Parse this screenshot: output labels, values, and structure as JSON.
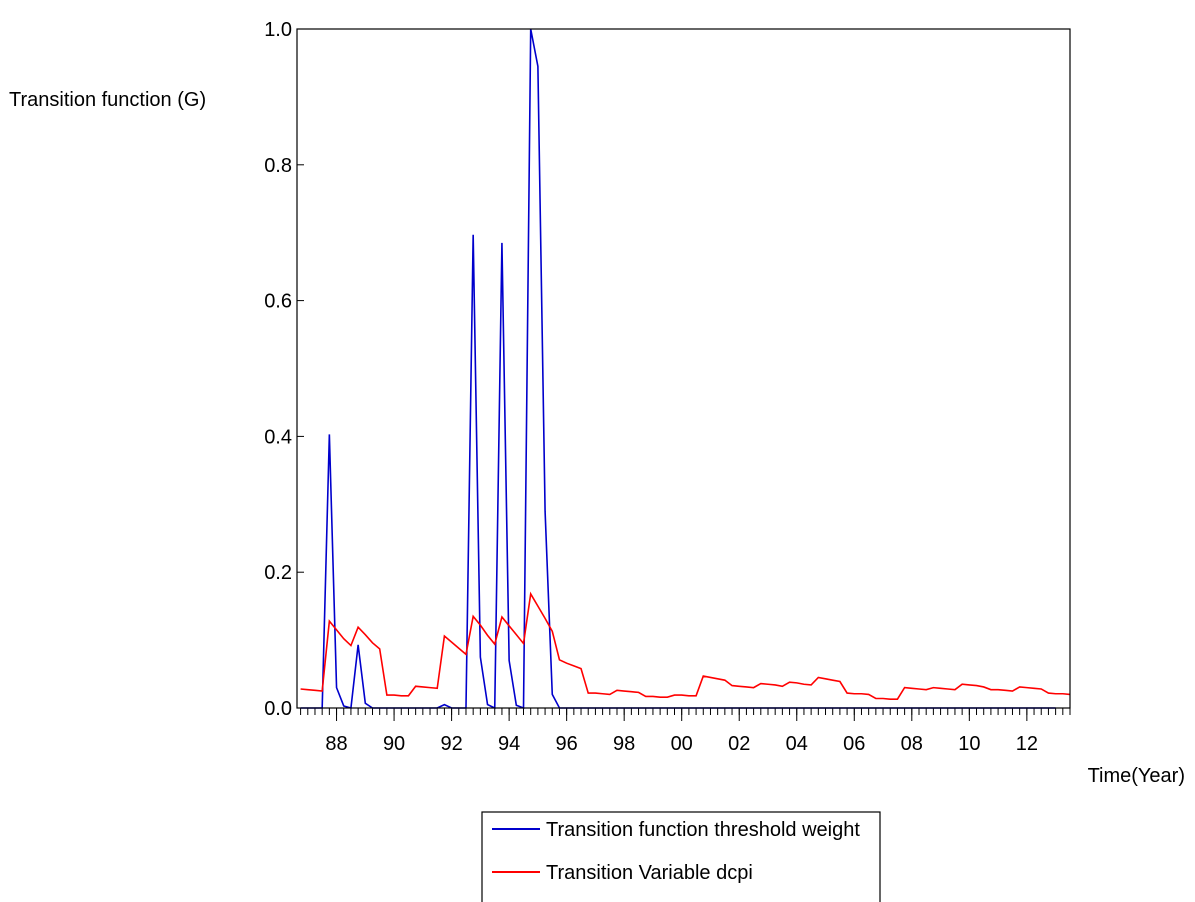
{
  "chart_data": {
    "type": "line",
    "ylabel": "Transition function (G)",
    "xlabel": "Time(Year)",
    "xlim": [
      1986.625,
      2013.5
    ],
    "ylim": [
      0.0,
      1.0
    ],
    "y_ticks": [
      "0.0",
      "0.2",
      "0.4",
      "0.6",
      "0.8",
      "1.0"
    ],
    "y_tick_values": [
      0.0,
      0.2,
      0.4,
      0.6,
      0.8,
      1.0
    ],
    "x_ticks": [
      "88",
      "90",
      "92",
      "94",
      "96",
      "98",
      "00",
      "02",
      "04",
      "06",
      "08",
      "10",
      "12"
    ],
    "x_tick_values": [
      1988,
      1990,
      1992,
      1994,
      1996,
      1998,
      2000,
      2002,
      2004,
      2006,
      2008,
      2010,
      2012
    ],
    "grid": false,
    "legend_position": "bottom-center",
    "series": [
      {
        "name": "Transition function threshold weight",
        "color": "#0000cc",
        "x": [
          1986.75,
          1987.0,
          1987.25,
          1987.5,
          1987.75,
          1988.0,
          1988.25,
          1988.5,
          1988.75,
          1989.0,
          1989.25,
          1989.5,
          1989.75,
          1990.0,
          1990.25,
          1990.5,
          1990.75,
          1991.0,
          1991.25,
          1991.5,
          1991.75,
          1992.0,
          1992.25,
          1992.5,
          1992.75,
          1993.0,
          1993.25,
          1993.5,
          1993.75,
          1994.0,
          1994.25,
          1994.5,
          1994.75,
          1995.0,
          1995.25,
          1995.5,
          1995.75,
          1996.0,
          1996.25,
          1996.5,
          1996.75,
          1997.0,
          1997.5,
          1998.0,
          1999.0,
          2000.0,
          2001.0,
          2002.0,
          2003.0,
          2004.0,
          2005.0,
          2006.0,
          2007.0,
          2008.0,
          2009.0,
          2010.0,
          2011.0,
          2012.0,
          2013.0
        ],
        "values": [
          0.0,
          0.0,
          0.0,
          0.0,
          0.403,
          0.03,
          0.003,
          0.0,
          0.093,
          0.007,
          0.0,
          0.0,
          0.0,
          0.0,
          0.0,
          0.0,
          0.0,
          0.0,
          0.0,
          0.0,
          0.005,
          0.0,
          0.0,
          0.0,
          0.697,
          0.075,
          0.005,
          0.0,
          0.685,
          0.07,
          0.004,
          0.0,
          1.0,
          0.945,
          0.29,
          0.02,
          0.0,
          0.0,
          0.0,
          0.0,
          0.0,
          0.0,
          0.0,
          0.0,
          0.0,
          0.0,
          0.0,
          0.0,
          0.0,
          0.0,
          0.0,
          0.0,
          0.0,
          0.0,
          0.0,
          0.0,
          0.0,
          0.0,
          0.0
        ]
      },
      {
        "name": "Transition Variable dcpi",
        "color": "#ff0000",
        "x": [
          1986.75,
          1987.0,
          1987.25,
          1987.5,
          1987.75,
          1988.0,
          1988.25,
          1988.5,
          1988.75,
          1989.0,
          1989.25,
          1989.5,
          1989.75,
          1990.0,
          1990.25,
          1990.5,
          1990.75,
          1991.0,
          1991.25,
          1991.5,
          1991.75,
          1992.0,
          1992.25,
          1992.5,
          1992.75,
          1993.0,
          1993.25,
          1993.5,
          1993.75,
          1994.0,
          1994.25,
          1994.5,
          1994.75,
          1995.0,
          1995.25,
          1995.5,
          1995.75,
          1996.0,
          1996.25,
          1996.5,
          1996.75,
          1997.0,
          1997.25,
          1997.5,
          1997.75,
          1998.0,
          1998.25,
          1998.5,
          1998.75,
          1999.0,
          1999.25,
          1999.5,
          1999.75,
          2000.0,
          2000.25,
          2000.5,
          2000.75,
          2001.0,
          2001.25,
          2001.5,
          2001.75,
          2002.0,
          2002.25,
          2002.5,
          2002.75,
          2003.0,
          2003.25,
          2003.5,
          2003.75,
          2004.0,
          2004.25,
          2004.5,
          2004.75,
          2005.0,
          2005.25,
          2005.5,
          2005.75,
          2006.0,
          2006.25,
          2006.5,
          2006.75,
          2007.0,
          2007.25,
          2007.5,
          2007.75,
          2008.0,
          2008.25,
          2008.5,
          2008.75,
          2009.0,
          2009.25,
          2009.5,
          2009.75,
          2010.0,
          2010.25,
          2010.5,
          2010.75,
          2011.0,
          2011.25,
          2011.5,
          2011.75,
          2012.0,
          2012.25,
          2012.5,
          2012.75,
          2013.0,
          2013.25,
          2013.5
        ],
        "values": [
          0.028,
          0.027,
          0.026,
          0.025,
          0.128,
          0.115,
          0.102,
          0.092,
          0.119,
          0.108,
          0.096,
          0.087,
          0.019,
          0.019,
          0.018,
          0.018,
          0.032,
          0.031,
          0.03,
          0.029,
          0.106,
          0.097,
          0.088,
          0.079,
          0.135,
          0.122,
          0.107,
          0.094,
          0.134,
          0.121,
          0.108,
          0.095,
          0.168,
          0.15,
          0.132,
          0.113,
          0.071,
          0.066,
          0.062,
          0.058,
          0.022,
          0.022,
          0.021,
          0.02,
          0.026,
          0.025,
          0.024,
          0.023,
          0.017,
          0.017,
          0.016,
          0.016,
          0.019,
          0.019,
          0.018,
          0.018,
          0.047,
          0.045,
          0.043,
          0.041,
          0.033,
          0.032,
          0.031,
          0.03,
          0.036,
          0.035,
          0.034,
          0.032,
          0.038,
          0.037,
          0.035,
          0.034,
          0.045,
          0.043,
          0.041,
          0.039,
          0.022,
          0.021,
          0.021,
          0.02,
          0.014,
          0.014,
          0.013,
          0.013,
          0.03,
          0.029,
          0.028,
          0.027,
          0.03,
          0.029,
          0.028,
          0.027,
          0.035,
          0.034,
          0.033,
          0.031,
          0.027,
          0.027,
          0.026,
          0.025,
          0.031,
          0.03,
          0.029,
          0.028,
          0.022,
          0.021,
          0.021,
          0.02
        ]
      }
    ]
  }
}
